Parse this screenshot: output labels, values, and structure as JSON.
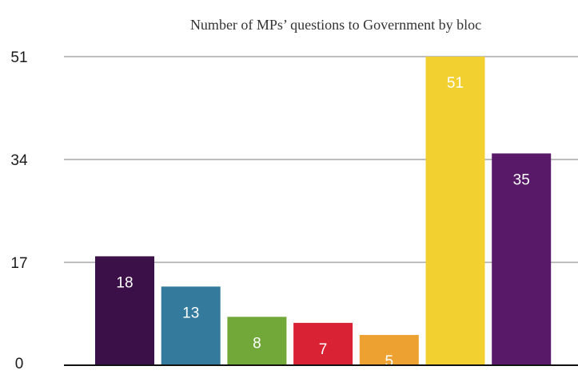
{
  "chart_data": {
    "type": "bar",
    "title": "Number of MPs’ questions to Government by bloc",
    "xlabel": "",
    "ylabel": "",
    "categories": [
      "",
      "",
      "",
      "",
      "",
      "",
      ""
    ],
    "values": [
      18,
      13,
      8,
      7,
      5,
      51,
      35
    ],
    "colors": [
      "#3b0f47",
      "#337a9c",
      "#72a83a",
      "#d92334",
      "#eda131",
      "#f2d030",
      "#581a68"
    ],
    "ylim": [
      0,
      51
    ],
    "yticks": [
      0,
      17,
      34,
      51
    ],
    "ytick_labels": [
      "0",
      "17",
      "34",
      "51"
    ],
    "data_labels": [
      "18",
      "13",
      "8",
      "7",
      "5",
      "51",
      "35"
    ],
    "grid": true,
    "legend": "none"
  }
}
